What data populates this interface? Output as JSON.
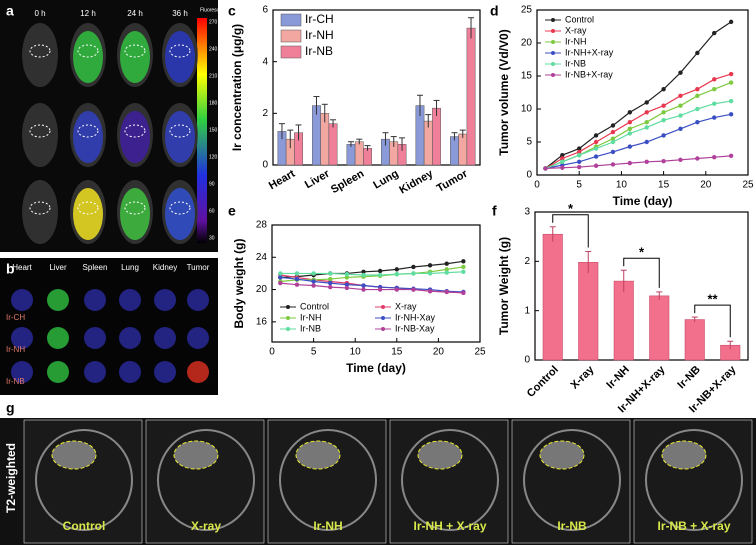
{
  "chart_data": [
    {
      "type": "bar",
      "label": "c",
      "ylabel": "Ir concentration (μg/g)",
      "categories": [
        "Heart",
        "Liver",
        "Spleen",
        "Lung",
        "Kidney",
        "Tumor"
      ],
      "series": [
        {
          "name": "Ir-CH",
          "color": "#8a9ad8",
          "values": [
            1.3,
            2.3,
            0.8,
            1.0,
            2.3,
            1.1
          ],
          "errors": [
            0.3,
            0.35,
            0.1,
            0.25,
            0.4,
            0.15
          ]
        },
        {
          "name": "Ir-NH",
          "color": "#f2a7a0",
          "values": [
            1.0,
            2.0,
            0.9,
            0.9,
            1.7,
            1.2
          ],
          "errors": [
            0.35,
            0.35,
            0.1,
            0.2,
            0.25,
            0.15
          ]
        },
        {
          "name": "Ir-NB",
          "color": "#f07f9a",
          "values": [
            1.25,
            1.6,
            0.65,
            0.8,
            2.2,
            5.3
          ],
          "errors": [
            0.3,
            0.15,
            0.1,
            0.25,
            0.3,
            0.4
          ]
        }
      ],
      "ylim": [
        0,
        6
      ],
      "yticks": [
        0,
        2,
        4,
        6
      ],
      "legend": "upper left"
    },
    {
      "type": "line",
      "label": "d",
      "ylabel": "Tumor volume (Vd/V0)",
      "xlabel": "Time (day)",
      "x": [
        1,
        3,
        5,
        7,
        9,
        11,
        13,
        15,
        17,
        19,
        21,
        23
      ],
      "series": [
        {
          "name": "Control",
          "color": "#222222",
          "values": [
            1,
            3,
            4,
            6,
            7.5,
            9.5,
            11,
            13,
            15.5,
            18.5,
            21.5,
            23.2
          ]
        },
        {
          "name": "X-ray",
          "color": "#e8384f",
          "values": [
            1,
            2.5,
            3.5,
            5,
            6.5,
            8,
            9.5,
            10.5,
            12,
            13,
            14.5,
            15.3
          ]
        },
        {
          "name": "Ir-NH",
          "color": "#7dc93f",
          "values": [
            1,
            2,
            3,
            4.3,
            5.5,
            7,
            8,
            9.5,
            10.5,
            12,
            13,
            14
          ]
        },
        {
          "name": "Ir-NH+X-ray",
          "color": "#3b4fc4",
          "values": [
            1,
            1.5,
            2,
            2.8,
            3.5,
            4.3,
            5,
            6,
            7,
            8,
            8.7,
            9.2
          ]
        },
        {
          "name": "Ir-NB",
          "color": "#5fdca0",
          "values": [
            1,
            2,
            3,
            4,
            5,
            6.3,
            7.2,
            8.3,
            9,
            10,
            10.8,
            11.2
          ]
        },
        {
          "name": "Ir-NB+X-ray",
          "color": "#b0409a",
          "values": [
            1,
            1.1,
            1.2,
            1.4,
            1.6,
            1.8,
            2,
            2.1,
            2.3,
            2.5,
            2.7,
            2.9
          ]
        }
      ],
      "xlim": [
        0,
        25
      ],
      "xticks": [
        0,
        5,
        10,
        15,
        20,
        25
      ],
      "ylim": [
        0,
        25
      ],
      "yticks": [
        0,
        5,
        10,
        15,
        20,
        25
      ],
      "legend": "upper left",
      "legend_columns": 1
    },
    {
      "type": "line",
      "label": "e",
      "ylabel": "Body weight (g)",
      "xlabel": "Time (day)",
      "x": [
        1,
        3,
        5,
        7,
        9,
        11,
        13,
        15,
        17,
        19,
        21,
        23
      ],
      "series": [
        {
          "name": "Control",
          "color": "#222222",
          "values": [
            21.5,
            21.6,
            21.8,
            22,
            22,
            22.2,
            22.3,
            22.5,
            22.8,
            23,
            23.2,
            23.5
          ]
        },
        {
          "name": "X-ray",
          "color": "#e03c6a",
          "values": [
            21.8,
            21.5,
            21.2,
            21,
            20.8,
            20.5,
            20.3,
            20.2,
            20,
            19.8,
            19.7,
            19.6
          ]
        },
        {
          "name": "Ir-NH",
          "color": "#7dc93f",
          "values": [
            21,
            21.2,
            21.2,
            21.3,
            21.5,
            21.6,
            21.7,
            21.9,
            22,
            22.2,
            22.5,
            22.8
          ]
        },
        {
          "name": "Ir-NH-Xay",
          "color": "#3b4fc4",
          "values": [
            21.5,
            21.3,
            21,
            20.8,
            20.6,
            20.5,
            20.3,
            20.2,
            20.1,
            20,
            19.8,
            19.7
          ]
        },
        {
          "name": "Ir-NB",
          "color": "#5fdca0",
          "values": [
            22,
            22,
            22,
            22,
            21.9,
            21.8,
            21.8,
            21.9,
            22,
            22,
            22.1,
            22.2
          ]
        },
        {
          "name": "Ir-NB-Xay",
          "color": "#b0409a",
          "values": [
            20.8,
            20.6,
            20.5,
            20.3,
            20.2,
            20,
            20,
            20,
            20,
            19.8,
            19.7,
            19.6
          ]
        }
      ],
      "xlim": [
        0,
        25
      ],
      "xticks": [
        0,
        5,
        10,
        15,
        20,
        25
      ],
      "ylim": [
        13.5,
        28
      ],
      "yticks": [
        16,
        20,
        24,
        28
      ],
      "legend": "lower left",
      "legend_columns": 2
    },
    {
      "type": "bar",
      "label": "f",
      "ylabel": "Tumor Weight (g)",
      "categories": [
        "Control",
        "X-ray",
        "Ir-NH",
        "Ir-NH+X-ray",
        "Ir-NB",
        "Ir-NB+X-ray"
      ],
      "values": [
        2.55,
        1.98,
        1.6,
        1.3,
        0.82,
        0.3
      ],
      "errors": [
        0.15,
        0.22,
        0.22,
        0.08,
        0.05,
        0.08
      ],
      "color": "#f2708c",
      "ylim": [
        0,
        3
      ],
      "yticks": [
        0,
        1,
        2,
        3
      ],
      "annotations": [
        "*",
        "*",
        "**"
      ]
    }
  ],
  "panel_a": {
    "label": "a",
    "times": [
      "0 h",
      "12 h",
      "24 h",
      "36 h"
    ],
    "colorbar_title": "Fluorescence",
    "colorbar_ticks": [
      "270",
      "240",
      "210",
      "180",
      "150",
      "120",
      "90",
      "60",
      "30"
    ]
  },
  "panel_b": {
    "label": "b",
    "organs": [
      "Heart",
      "Liver",
      "Spleen",
      "Lung",
      "Kidney",
      "Tumor"
    ],
    "groups": [
      "Ir-CH",
      "Ir-NH",
      "Ir-NB"
    ]
  },
  "panel_g": {
    "label": "g",
    "ylabel": "T2-weighted",
    "groups": [
      "Control",
      "X-ray",
      "Ir-NH",
      "Ir-NH + X-ray",
      "Ir-NB",
      "Ir-NB + X-ray"
    ]
  }
}
